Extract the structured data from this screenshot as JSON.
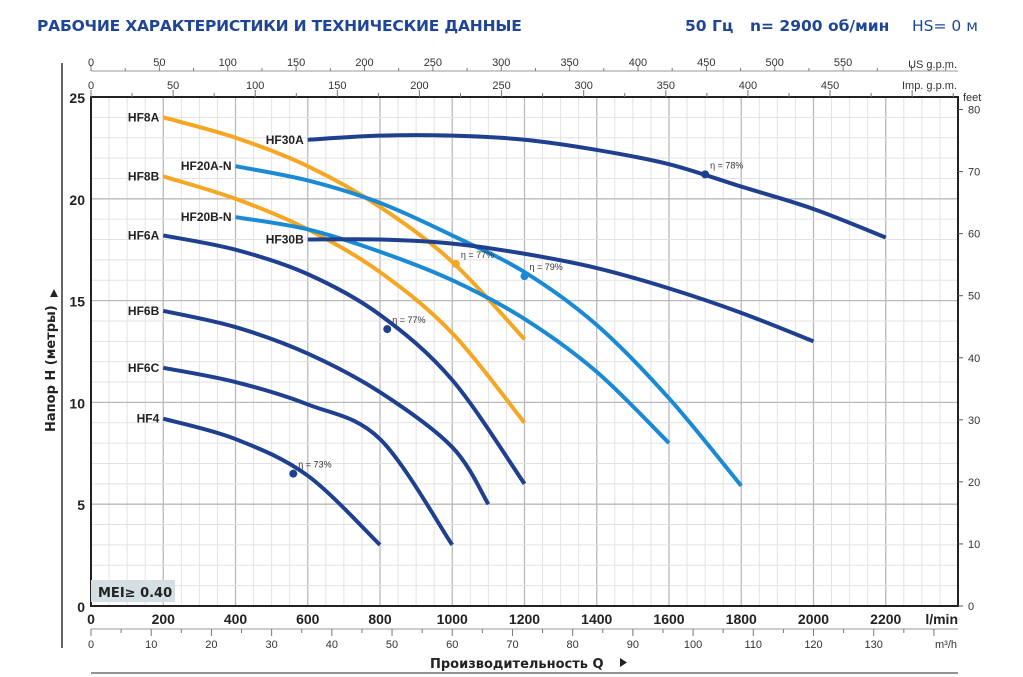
{
  "header": {
    "title": "РАБОЧИЕ ХАРАКТЕРИСТИКИ И ТЕХНИЧЕСКИЕ ДАННЫЕ",
    "frequency": "50 Гц",
    "speed": "n= 2900 об/мин",
    "hs": "HS= 0 м"
  },
  "chart_data": {
    "type": "line",
    "title": "РАБОЧИЕ ХАРАКТЕРИСТИКИ И ТЕХНИЧЕСКИЕ ДАННЫЕ",
    "xlabel": "Производительность Q",
    "ylabel": "Напор H (метры)",
    "xlim": [
      0,
      2400
    ],
    "ylim": [
      0,
      25
    ],
    "grid": true,
    "x_unit": "l/min",
    "x_ticks": [
      0,
      200,
      400,
      600,
      800,
      1000,
      1200,
      1400,
      1600,
      1800,
      2000,
      2200
    ],
    "y_ticks": [
      0,
      5,
      10,
      15,
      20,
      25
    ],
    "secondary_axes": {
      "us_gpm": {
        "unit": "US g.p.m.",
        "ticks": [
          0,
          50,
          100,
          150,
          200,
          250,
          300,
          350,
          400,
          450,
          500,
          550
        ]
      },
      "imp_gpm": {
        "unit": "Imp. g.p.m.",
        "ticks": [
          0,
          50,
          100,
          150,
          200,
          250,
          300,
          350,
          400,
          450
        ]
      },
      "m3h": {
        "unit": "m³/h",
        "ticks": [
          0,
          10,
          20,
          30,
          40,
          50,
          60,
          70,
          80,
          90,
          100,
          110,
          120,
          130
        ]
      },
      "feet": {
        "unit": "feet",
        "ticks": [
          0,
          10,
          20,
          30,
          40,
          50,
          60,
          70,
          80
        ]
      }
    },
    "badge": "MEI≥ 0.40",
    "series": [
      {
        "name": "HF8A",
        "color": "#f5a623",
        "points": [
          [
            200,
            24.0
          ],
          [
            400,
            23.0
          ],
          [
            600,
            21.6
          ],
          [
            800,
            19.6
          ],
          [
            1000,
            16.9
          ],
          [
            1200,
            13.1
          ]
        ]
      },
      {
        "name": "HF8B",
        "color": "#f5a623",
        "points": [
          [
            200,
            21.1
          ],
          [
            400,
            20.0
          ],
          [
            600,
            18.5
          ],
          [
            800,
            16.4
          ],
          [
            1000,
            13.4
          ],
          [
            1200,
            9.0
          ]
        ]
      },
      {
        "name": "HF20A-N",
        "color": "#1a8ad4",
        "points": [
          [
            400,
            21.6
          ],
          [
            600,
            20.9
          ],
          [
            800,
            19.8
          ],
          [
            1000,
            18.2
          ],
          [
            1200,
            16.4
          ],
          [
            1400,
            13.8
          ],
          [
            1600,
            10.2
          ],
          [
            1800,
            5.9
          ]
        ]
      },
      {
        "name": "HF20B-N",
        "color": "#1a8ad4",
        "points": [
          [
            400,
            19.1
          ],
          [
            600,
            18.5
          ],
          [
            800,
            17.4
          ],
          [
            1000,
            16.0
          ],
          [
            1200,
            14.1
          ],
          [
            1400,
            11.5
          ],
          [
            1600,
            8.0
          ]
        ]
      },
      {
        "name": "HF30A",
        "color": "#1f3f8f",
        "points": [
          [
            600,
            22.9
          ],
          [
            800,
            23.1
          ],
          [
            1000,
            23.1
          ],
          [
            1200,
            22.9
          ],
          [
            1400,
            22.4
          ],
          [
            1600,
            21.7
          ],
          [
            1800,
            20.6
          ],
          [
            2000,
            19.5
          ],
          [
            2200,
            18.1
          ]
        ]
      },
      {
        "name": "HF30B",
        "color": "#1f3f8f",
        "points": [
          [
            600,
            18.0
          ],
          [
            800,
            18.0
          ],
          [
            1000,
            17.8
          ],
          [
            1200,
            17.3
          ],
          [
            1400,
            16.6
          ],
          [
            1600,
            15.6
          ],
          [
            1800,
            14.4
          ],
          [
            2000,
            13.0
          ]
        ]
      },
      {
        "name": "HF6A",
        "color": "#1f3f8f",
        "points": [
          [
            200,
            18.2
          ],
          [
            400,
            17.5
          ],
          [
            600,
            16.3
          ],
          [
            800,
            14.3
          ],
          [
            1000,
            11.1
          ],
          [
            1200,
            6.0
          ]
        ]
      },
      {
        "name": "HF6B",
        "color": "#1f3f8f",
        "points": [
          [
            200,
            14.5
          ],
          [
            400,
            13.7
          ],
          [
            600,
            12.4
          ],
          [
            800,
            10.5
          ],
          [
            1000,
            7.8
          ],
          [
            1100,
            5.0
          ]
        ]
      },
      {
        "name": "HF6C",
        "color": "#1f3f8f",
        "points": [
          [
            200,
            11.7
          ],
          [
            400,
            11.0
          ],
          [
            600,
            9.9
          ],
          [
            800,
            8.2
          ],
          [
            1000,
            3.0
          ]
        ]
      },
      {
        "name": "HF4",
        "color": "#1f3f8f",
        "points": [
          [
            200,
            9.2
          ],
          [
            400,
            8.2
          ],
          [
            600,
            6.4
          ],
          [
            800,
            3.0
          ]
        ]
      }
    ],
    "efficiency_points": [
      {
        "series": "HF4",
        "label": "η = 73%",
        "x": 560,
        "y": 6.5
      },
      {
        "series": "HF6A",
        "label": "η = 77%",
        "x": 820,
        "y": 13.6
      },
      {
        "series": "HF8A",
        "label": "η = 77%",
        "x": 1010,
        "y": 16.8
      },
      {
        "series": "HF20A-N",
        "label": "η = 79%",
        "x": 1200,
        "y": 16.2
      },
      {
        "series": "HF30A",
        "label": "η = 78%",
        "x": 1700,
        "y": 21.2
      }
    ]
  }
}
